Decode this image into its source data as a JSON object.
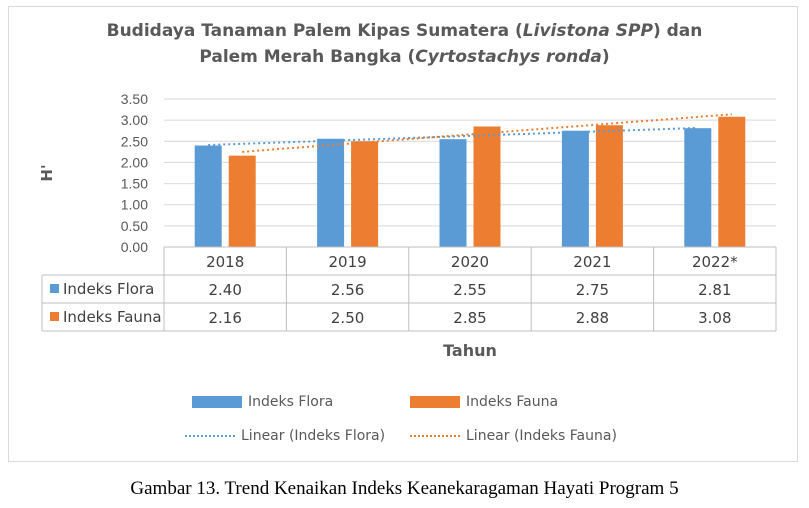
{
  "chart_data": {
    "type": "bar",
    "title_line1_pre": "Budidaya Tanaman Palem Kipas Sumatera (",
    "title_line1_em": "Livistona SPP",
    "title_line1_post": ") dan",
    "title_line2_pre": "Palem Merah Bangka (",
    "title_line2_em": "Cyrtostachys ronda",
    "title_line2_post": ")",
    "ylabel": "H'",
    "xlabel": "Tahun",
    "categories": [
      "2018",
      "2019",
      "2020",
      "2021",
      "2022*"
    ],
    "series": [
      {
        "name": "Indeks Flora",
        "values": [
          2.4,
          2.56,
          2.55,
          2.75,
          2.81
        ],
        "value_labels": [
          "2.40",
          "2.56",
          "2.55",
          "2.75",
          "2.81"
        ],
        "color": "#5b9bd5"
      },
      {
        "name": "Indeks Fauna",
        "values": [
          2.16,
          2.5,
          2.85,
          2.88,
          3.08
        ],
        "value_labels": [
          "2.16",
          "2.50",
          "2.85",
          "2.88",
          "3.08"
        ],
        "color": "#ed7d31"
      }
    ],
    "trendlines": [
      {
        "name": "Linear (Indeks Flora)",
        "color": "#5b9bd5"
      },
      {
        "name": "Linear (Indeks Fauna)",
        "color": "#ed7d31"
      }
    ],
    "ylim": [
      0,
      3.5
    ],
    "yticks": [
      "0.00",
      "0.50",
      "1.00",
      "1.50",
      "2.00",
      "2.50",
      "3.00",
      "3.50"
    ],
    "grid": true,
    "legend": "bottom",
    "data_table": true
  },
  "caption": "Gambar 13. Trend Kenaikan Indeks Keanekaragaman Hayati Program 5"
}
